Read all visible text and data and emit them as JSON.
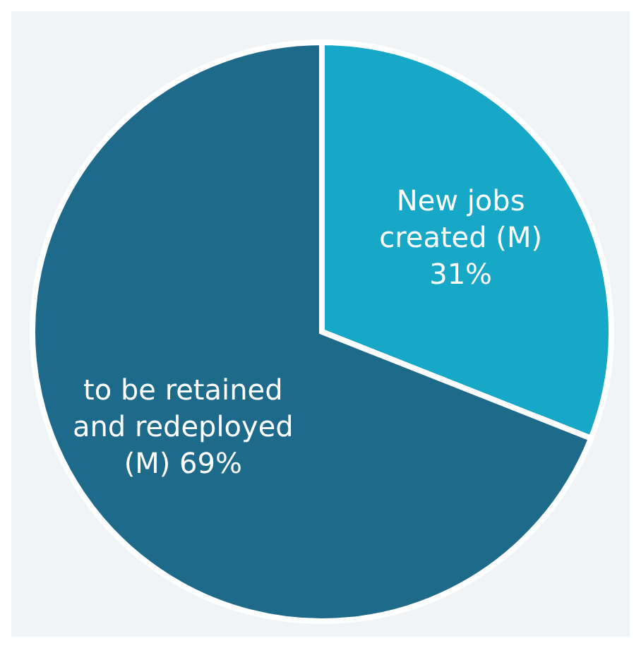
{
  "chart_data": {
    "type": "pie",
    "categories": [
      "New jobs created (M)",
      "to be retained and redeployed (M)"
    ],
    "values": [
      31,
      69
    ],
    "value_labels": [
      "31%",
      "69%"
    ],
    "colors": [
      "#17a7c7",
      "#1d6a8a"
    ],
    "legend": false
  }
}
